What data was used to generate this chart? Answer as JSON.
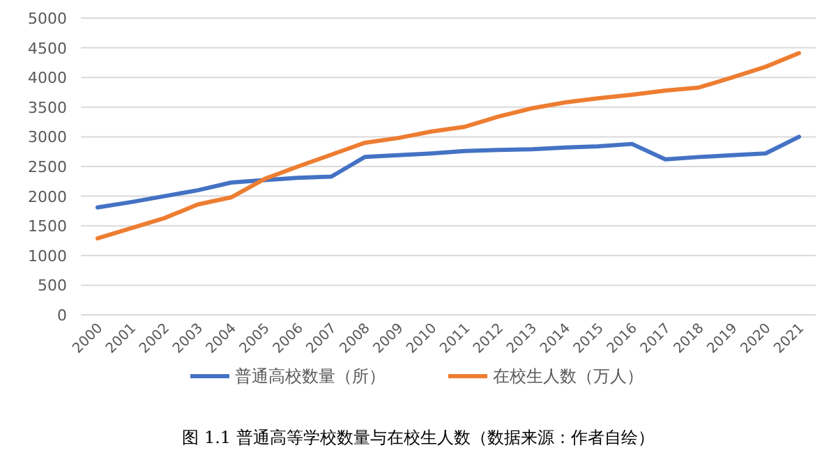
{
  "chart_data": {
    "type": "line",
    "categories": [
      "2000",
      "2001",
      "2002",
      "2003",
      "2004",
      "2005",
      "2006",
      "2007",
      "2008",
      "2009",
      "2010",
      "2011",
      "2012",
      "2013",
      "2014",
      "2015",
      "2016",
      "2017",
      "2018",
      "2019",
      "2020",
      "2021"
    ],
    "series": [
      {
        "name": "普通高校数量（所）",
        "color": "#4472c4",
        "values": [
          1810,
          1900,
          2000,
          2100,
          2230,
          2270,
          2310,
          2330,
          2660,
          2690,
          2720,
          2760,
          2780,
          2790,
          2820,
          2840,
          2880,
          2620,
          2660,
          2690,
          2720,
          3000
        ]
      },
      {
        "name": "在校生人数（万人）",
        "color": "#ed7d31",
        "values": [
          1290,
          1460,
          1630,
          1860,
          1980,
          2290,
          2500,
          2700,
          2900,
          2980,
          3090,
          3170,
          3340,
          3480,
          3580,
          3650,
          3710,
          3780,
          3830,
          4000,
          4180,
          4410
        ]
      }
    ],
    "ylim": [
      0,
      5000
    ],
    "yticks": [
      0,
      500,
      1000,
      1500,
      2000,
      2500,
      3000,
      3500,
      4000,
      4500,
      5000
    ],
    "grid": "y",
    "legend": "bottom",
    "marker": "none",
    "line_style": "solid",
    "annotations": [
      "图 1.1 普通高等学校数量与在校生人数（数据来源：作者自绘）"
    ]
  }
}
